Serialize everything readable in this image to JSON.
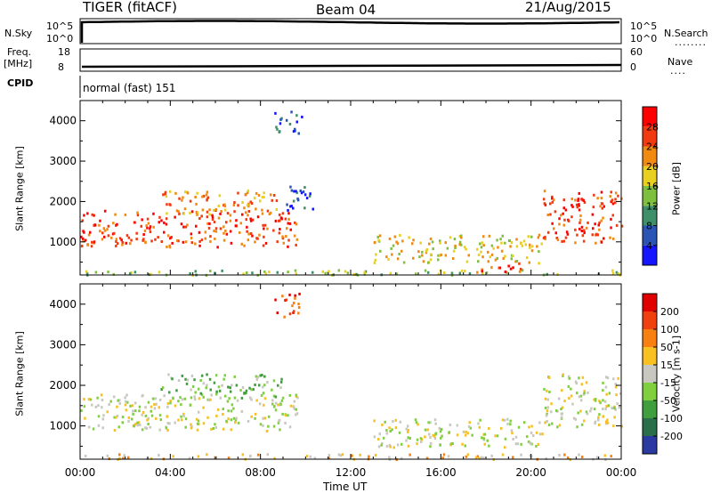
{
  "header": {
    "title": "TIGER (fitACF)",
    "beam": "Beam 04",
    "date": "21/Aug/2015"
  },
  "status": {
    "nsky_label": "N.Sky",
    "nsky_top": "10^5",
    "nsky_bottom": "10^0",
    "nsearch_label": "N.Search",
    "nsearch_top": "10^5",
    "nsearch_bottom": "10^0",
    "nsearch_dots": "........",
    "freq_label_1": "Freq.",
    "freq_label_2": "[MHz]",
    "freq_top": "18",
    "freq_bottom": "8",
    "nave_label": "Nave",
    "nave_top": "60",
    "nave_bottom": "0",
    "nave_dots": "....",
    "cpid_label": "CPID",
    "cpid_value": "normal (fast) 151"
  },
  "chart_data": [
    {
      "type": "heatmap",
      "name": "power",
      "ylabel": "Slant Range [km]",
      "xlabel": "Time UT",
      "x_ticks": [
        "00:00",
        "04:00",
        "08:00",
        "12:00",
        "16:00",
        "20:00",
        "00:00"
      ],
      "y_ticks": [
        1000,
        2000,
        3000,
        4000
      ],
      "ylim": [
        180,
        4500
      ],
      "xlim_hours": [
        0,
        24
      ],
      "colorbar": {
        "label": "Power [dB]",
        "ticks": [
          4,
          8,
          12,
          16,
          20,
          24,
          28
        ],
        "colors": [
          "#1515ff",
          "#2a55b5",
          "#3f8f6a",
          "#7fbf3f",
          "#e8d020",
          "#f08a10",
          "#f23a10",
          "#ff0000"
        ]
      },
      "echo_regions": [
        {
          "t0": 0,
          "t1": 9.6,
          "r0": 900,
          "r1": 1800,
          "level": 6
        },
        {
          "t0": 3.5,
          "t1": 8.9,
          "r0": 1700,
          "r1": 2300,
          "level": 5
        },
        {
          "t0": 0,
          "t1": 24,
          "r0": 200,
          "r1": 330,
          "level": 3
        },
        {
          "t0": 13,
          "t1": 20.5,
          "r0": 500,
          "r1": 1200,
          "level": 4
        },
        {
          "t0": 17.5,
          "t1": 19.5,
          "r0": 250,
          "r1": 500,
          "level": 6
        },
        {
          "t0": 20.5,
          "t1": 24,
          "r0": 1000,
          "r1": 2300,
          "level": 6
        },
        {
          "t0": 8.6,
          "t1": 9.8,
          "r0": 3700,
          "r1": 4300,
          "level": 1
        },
        {
          "t0": 9.0,
          "t1": 10.3,
          "r0": 1800,
          "r1": 2500,
          "level": 1
        }
      ]
    },
    {
      "type": "heatmap",
      "name": "velocity",
      "ylabel": "Slant Range [km]",
      "xlabel": "Time UT",
      "x_ticks": [
        "00:00",
        "04:00",
        "08:00",
        "12:00",
        "16:00",
        "20:00",
        "00:00"
      ],
      "y_ticks": [
        1000,
        2000,
        3000,
        4000
      ],
      "ylim": [
        180,
        4500
      ],
      "xlim_hours": [
        0,
        24
      ],
      "colorbar": {
        "label": "Velocity [m s-1]",
        "ticks": [
          200,
          100,
          50,
          15,
          -15,
          -50,
          -100,
          -200
        ],
        "colors": [
          "#2a3aa0",
          "#2a6e4a",
          "#3f9f3f",
          "#7fcf3f",
          "#c8c8c0",
          "#f8c020",
          "#f88010",
          "#f04010",
          "#e00000"
        ]
      },
      "echo_regions": [
        {
          "t0": 0,
          "t1": 9.6,
          "r0": 900,
          "r1": 1800,
          "level": 4
        },
        {
          "t0": 3.5,
          "t1": 8.9,
          "r0": 1700,
          "r1": 2300,
          "level": 3
        },
        {
          "t0": 0,
          "t1": 24,
          "r0": 200,
          "r1": 330,
          "level": 5
        },
        {
          "t0": 13,
          "t1": 20.5,
          "r0": 500,
          "r1": 1200,
          "level": 4
        },
        {
          "t0": 20.5,
          "t1": 24,
          "r0": 1000,
          "r1": 2300,
          "level": 4
        },
        {
          "t0": 8.6,
          "t1": 9.8,
          "r0": 3700,
          "r1": 4300,
          "level": 7
        }
      ]
    }
  ]
}
